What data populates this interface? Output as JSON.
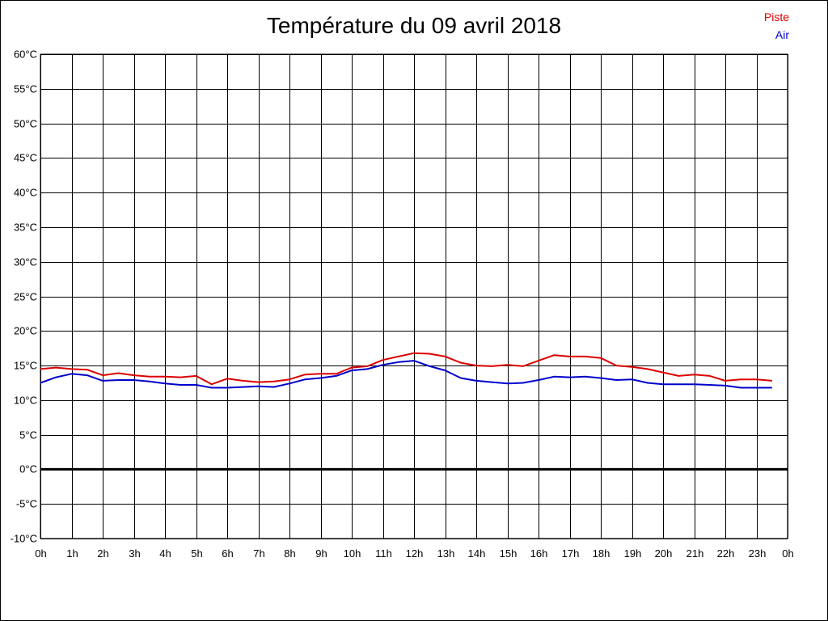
{
  "chart_data": {
    "type": "line",
    "title": "Température du 09 avril 2018",
    "xlabel": "",
    "ylabel": "",
    "ylim": [
      -10,
      60
    ],
    "y_tick_step": 5,
    "y_unit": "°C",
    "x_ticks": [
      "0h",
      "1h",
      "2h",
      "3h",
      "4h",
      "5h",
      "6h",
      "7h",
      "8h",
      "9h",
      "10h",
      "11h",
      "12h",
      "13h",
      "14h",
      "15h",
      "16h",
      "17h",
      "18h",
      "19h",
      "20h",
      "21h",
      "22h",
      "23h",
      "0h"
    ],
    "xlim": [
      0,
      24
    ],
    "grid": true,
    "zero_line": true,
    "legend_position": "top-right",
    "series": [
      {
        "name": "Piste",
        "color": "#dd0000",
        "x": [
          0,
          0.5,
          1,
          1.5,
          2,
          2.5,
          3,
          3.5,
          4,
          4.5,
          5,
          5.5,
          6,
          6.5,
          7,
          7.5,
          8,
          8.5,
          9,
          9.5,
          10,
          10.5,
          11,
          11.5,
          12,
          12.5,
          13,
          13.5,
          14,
          14.5,
          15,
          15.5,
          16,
          16.5,
          17,
          17.5,
          18,
          18.5,
          19,
          19.5,
          20,
          20.5,
          21,
          21.5,
          22,
          22.5,
          23,
          23.5
        ],
        "values": [
          14.5,
          14.7,
          14.5,
          14.4,
          13.6,
          13.9,
          13.6,
          13.4,
          13.4,
          13.3,
          13.5,
          12.3,
          13.1,
          12.8,
          12.6,
          12.7,
          13.0,
          13.7,
          13.8,
          13.8,
          14.7,
          14.9,
          15.8,
          16.3,
          16.8,
          16.7,
          16.3,
          15.4,
          15.0,
          14.9,
          15.1,
          14.9,
          15.7,
          16.5,
          16.3,
          16.3,
          16.1,
          15.0,
          14.8,
          14.5,
          14.0,
          13.5,
          13.7,
          13.5,
          12.8,
          13.0,
          13.0,
          12.8
        ]
      },
      {
        "name": "Air",
        "color": "#0000cc",
        "x": [
          0,
          0.5,
          1,
          1.5,
          2,
          2.5,
          3,
          3.5,
          4,
          4.5,
          5,
          5.5,
          6,
          6.5,
          7,
          7.5,
          8,
          8.5,
          9,
          9.5,
          10,
          10.5,
          11,
          11.5,
          12,
          12.5,
          13,
          13.5,
          14,
          14.5,
          15,
          15.5,
          16,
          16.5,
          17,
          17.5,
          18,
          18.5,
          19,
          19.5,
          20,
          20.5,
          21,
          21.5,
          22,
          22.5,
          23,
          23.5
        ],
        "values": [
          12.5,
          13.3,
          13.8,
          13.6,
          12.8,
          12.9,
          12.9,
          12.7,
          12.4,
          12.2,
          12.2,
          11.8,
          11.8,
          11.9,
          12.0,
          11.9,
          12.4,
          13.0,
          13.2,
          13.5,
          14.3,
          14.5,
          15.1,
          15.5,
          15.7,
          14.9,
          14.3,
          13.2,
          12.8,
          12.6,
          12.4,
          12.5,
          12.9,
          13.4,
          13.3,
          13.4,
          13.2,
          12.9,
          13.0,
          12.5,
          12.3,
          12.3,
          12.3,
          12.2,
          12.1,
          11.8,
          11.8,
          11.8
        ]
      }
    ]
  }
}
